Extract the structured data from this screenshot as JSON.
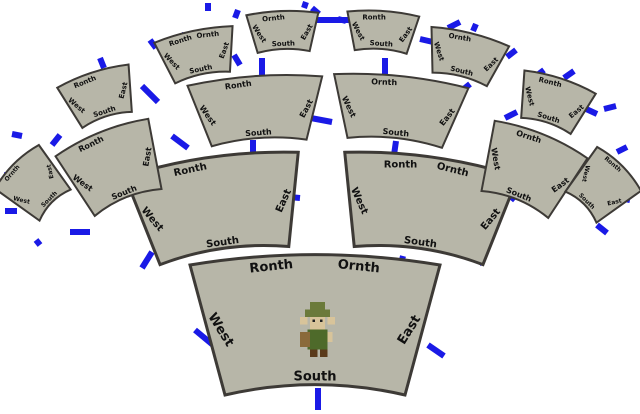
{
  "scene": {
    "connector_color": "#1a1ae6",
    "tile_fill": "#b7b6a8",
    "tile_border": "#3d3a36",
    "player_icon": "pixel-elf-player-icon"
  },
  "rooms": [
    {
      "id": "r0",
      "labels": {
        "north": "Ronth",
        "northeast": "Ornth",
        "east": "East",
        "south": "South",
        "west": "West"
      }
    },
    {
      "id": "r1",
      "labels": {
        "north": "Ronth",
        "east": "East",
        "south": "South",
        "west": "West"
      }
    },
    {
      "id": "r2",
      "labels": {
        "north": "Ornth",
        "northwest": "Ronth",
        "east": "East",
        "south": "South",
        "west": "West"
      }
    },
    {
      "id": "r3",
      "labels": {
        "north": "Ronth",
        "east": "East",
        "south": "South",
        "west": "West"
      }
    },
    {
      "id": "r4",
      "labels": {
        "north": "Ornth",
        "east": "East",
        "south": "South",
        "west": "West"
      }
    },
    {
      "id": "r5",
      "labels": {
        "north": "Ronth",
        "east": "East",
        "south": "South",
        "west": "West"
      }
    },
    {
      "id": "r6",
      "labels": {
        "north": "Ornth",
        "east": "East",
        "south": "South",
        "west": "West"
      }
    },
    {
      "id": "r7",
      "labels": {
        "north": "Ronth",
        "east": "East",
        "south": "South",
        "west": "West"
      }
    },
    {
      "id": "r8",
      "labels": {
        "north": "Ronth",
        "northeast": "Ornth",
        "east": "East",
        "south": "South",
        "west": "West"
      }
    },
    {
      "id": "r9",
      "labels": {
        "north": "Ornth",
        "east": "East",
        "south": "South",
        "west": "West"
      }
    },
    {
      "id": "r10",
      "labels": {
        "north": "Ronth",
        "east": "East",
        "south": "South",
        "west": "West"
      }
    },
    {
      "id": "r11",
      "labels": {
        "north": "Ornth",
        "east": "East",
        "south": "South",
        "west": "West"
      }
    },
    {
      "id": "r12",
      "labels": {
        "north": "Ronth",
        "east": "East",
        "south": "South",
        "west": "West"
      }
    },
    {
      "id": "r13",
      "labels": {
        "north": "Ornth",
        "east": "East",
        "south": "South",
        "west": "West"
      }
    },
    {
      "id": "r14",
      "labels": {
        "north": "Ronth",
        "east": "East",
        "south": "South",
        "west": "West"
      }
    },
    {
      "id": "r15",
      "labels": {
        "north": "Ornth",
        "east": "East",
        "south": "South",
        "west": "West"
      }
    }
  ]
}
